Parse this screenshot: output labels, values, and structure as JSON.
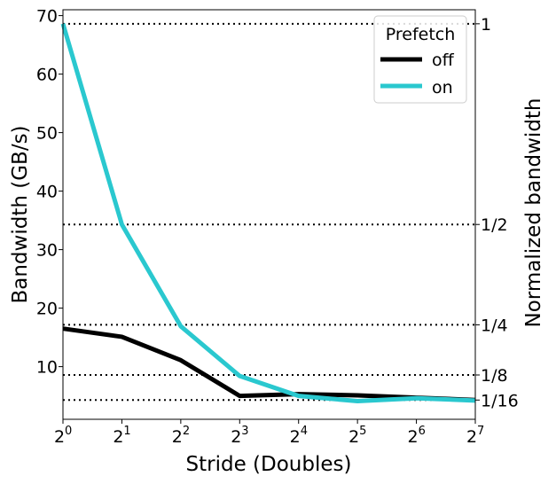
{
  "chart_data": {
    "type": "line",
    "xlabel": "Stride (Doubles)",
    "ylabel": "Bandwidth (GB/s)",
    "y2label": "Normalized bandwidth",
    "x": [
      0,
      1,
      2,
      3,
      4,
      5,
      6,
      7
    ],
    "x_tick_labels": [
      {
        "base": "2",
        "exp": "0"
      },
      {
        "base": "2",
        "exp": "1"
      },
      {
        "base": "2",
        "exp": "2"
      },
      {
        "base": "2",
        "exp": "3"
      },
      {
        "base": "2",
        "exp": "4"
      },
      {
        "base": "2",
        "exp": "5"
      },
      {
        "base": "2",
        "exp": "6"
      },
      {
        "base": "2",
        "exp": "7"
      }
    ],
    "xlim": [
      0,
      7
    ],
    "ylim": [
      1,
      71
    ],
    "y_ticks": [
      10,
      20,
      30,
      40,
      50,
      60,
      70
    ],
    "y_tick_labels": [
      "10",
      "20",
      "30",
      "40",
      "50",
      "60",
      "70"
    ],
    "reference_lines": [
      {
        "value": 68.6,
        "label": "1"
      },
      {
        "value": 34.3,
        "label": "1/2"
      },
      {
        "value": 17.15,
        "label": "1/4"
      },
      {
        "value": 8.575,
        "label": "1/8"
      },
      {
        "value": 4.29,
        "label": "1/16"
      }
    ],
    "legend": {
      "title": "Prefetch",
      "position": "top-right"
    },
    "series": [
      {
        "name": "off",
        "color": "#000000",
        "values": [
          16.5,
          15.1,
          11.1,
          5.0,
          5.3,
          5.1,
          4.7,
          4.3
        ]
      },
      {
        "name": "on",
        "color": "#2ac8cf",
        "values": [
          68.6,
          34.3,
          16.9,
          8.4,
          5.0,
          4.1,
          4.6,
          4.2
        ]
      }
    ]
  }
}
